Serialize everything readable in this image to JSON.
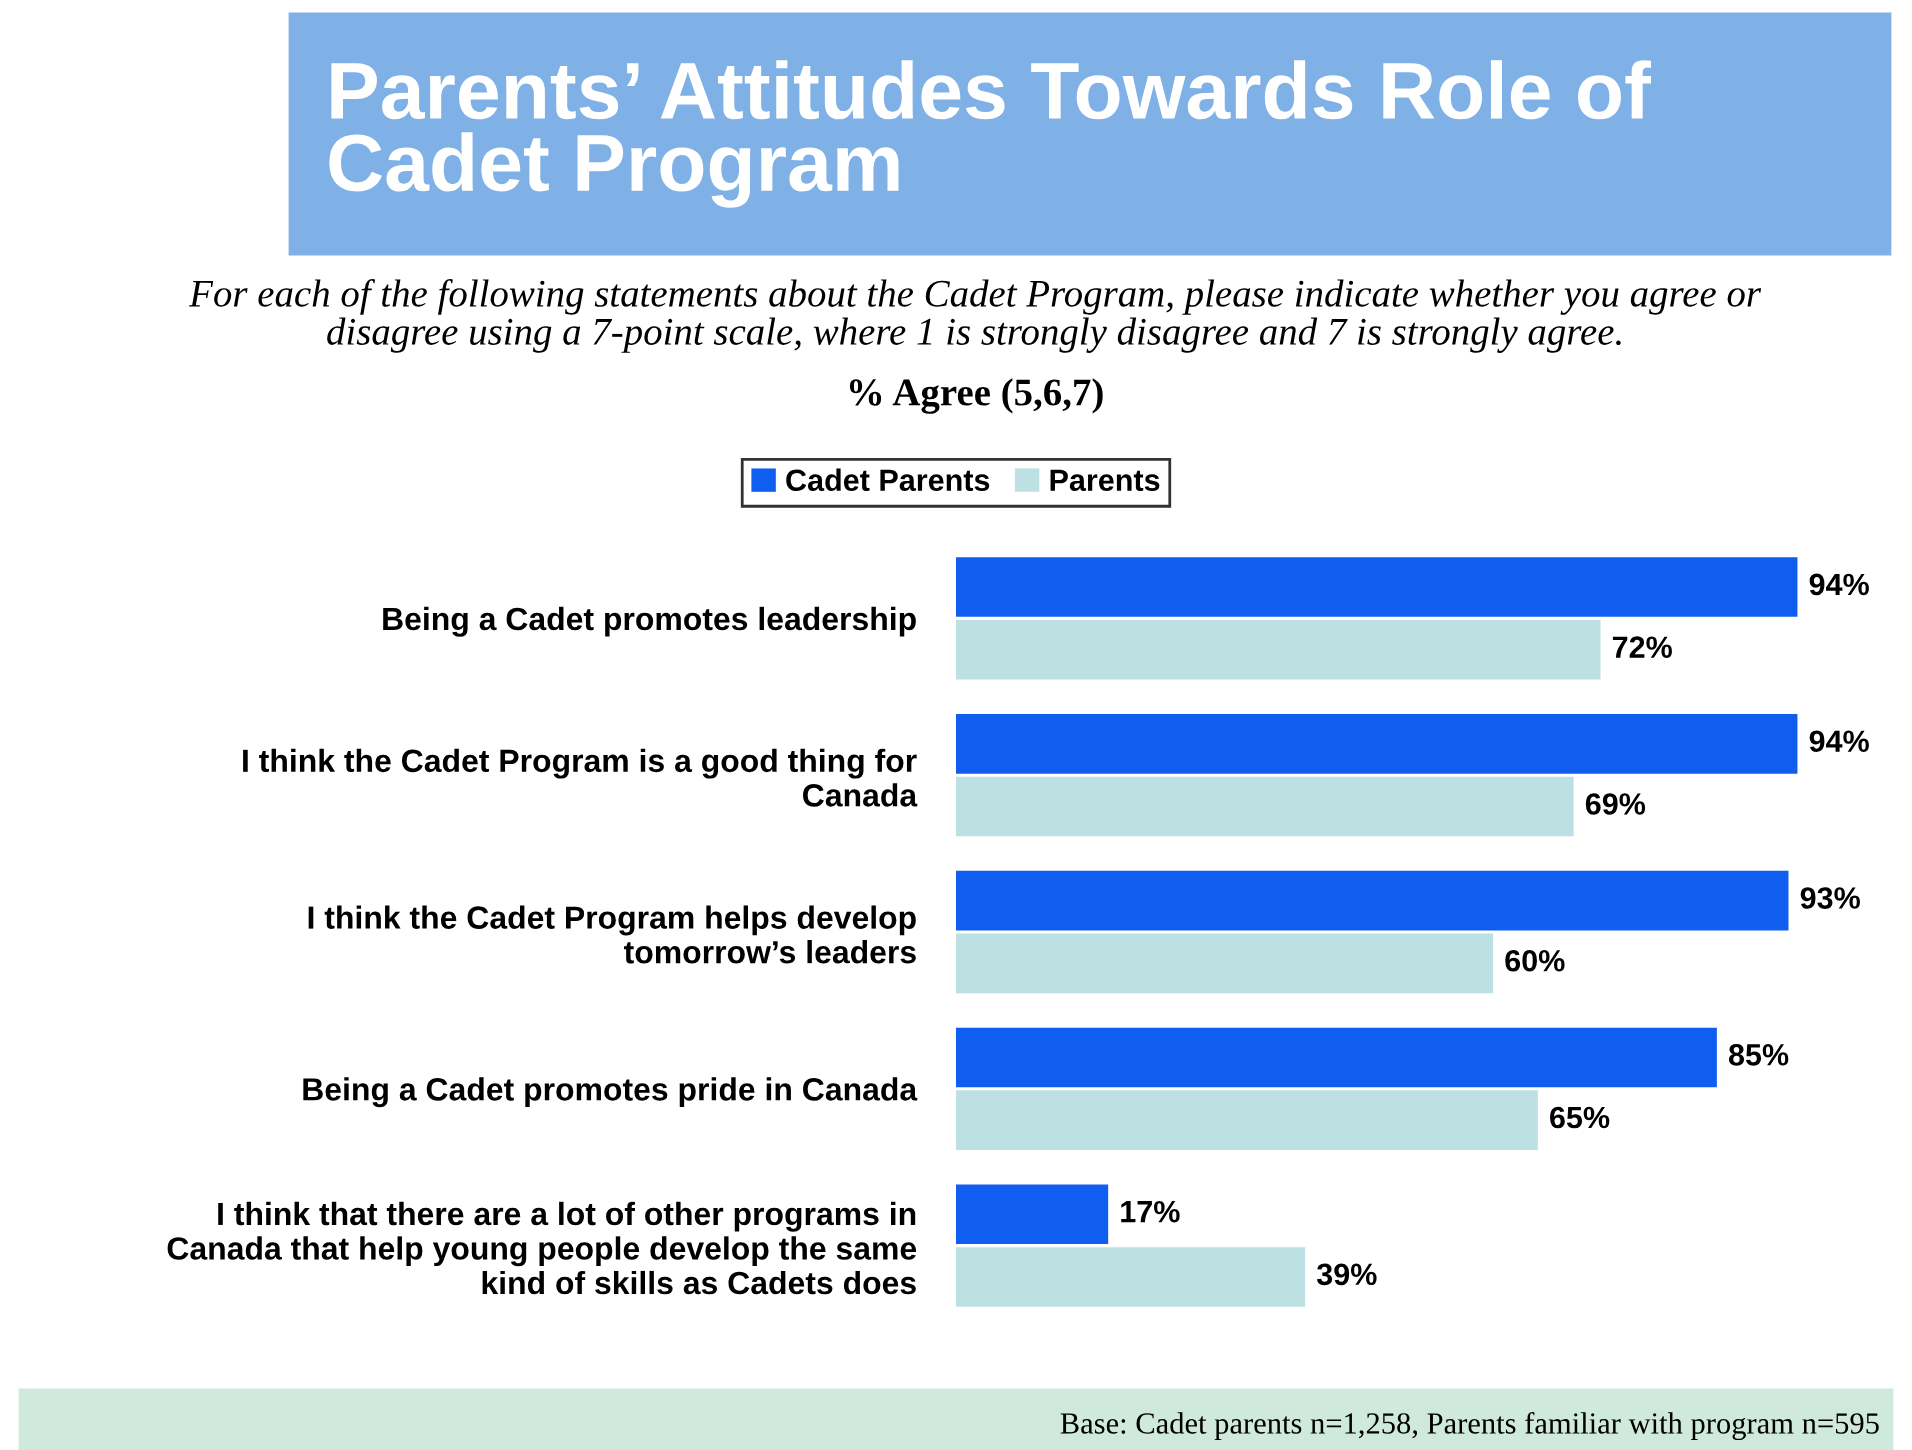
{
  "chart_data": {
    "type": "bar",
    "orientation": "horizontal",
    "title": "Parents’ Attitudes Towards Role of\nCadet Program",
    "subtitle": "For each of the following statements about the Cadet Program, please indicate whether you agree or\ndisagree using a 7-point scale, where 1 is strongly disagree and 7 is strongly agree.",
    "categories": [
      "Being a Cadet promotes leadership",
      "I think the Cadet Program is a good thing for\nCanada",
      "I think the Cadet Program helps develop\ntomorrow’s leaders",
      "Being a Cadet promotes pride in Canada",
      "I think that there are a lot of other programs in\nCanada that help young people develop the same\nkind of skills as Cadets does"
    ],
    "series": [
      {
        "name": "Cadet Parents",
        "color": "#0f5ef0",
        "values": [
          94,
          94,
          93,
          85,
          17
        ],
        "value_labels": [
          "94%",
          "94%",
          "93%",
          "85%",
          "17%"
        ]
      },
      {
        "name": "Parents",
        "color": "#bde0e3",
        "values": [
          72,
          69,
          60,
          65,
          39
        ],
        "value_labels": [
          "72%",
          "69%",
          "60%",
          "65%",
          "39%"
        ]
      }
    ],
    "legend": "top",
    "grid": false,
    "annotations": [
      "% Agree (5,6,7)",
      "Base: Cadet parents n=1,258, Parents familiar with program n=595"
    ]
  }
}
